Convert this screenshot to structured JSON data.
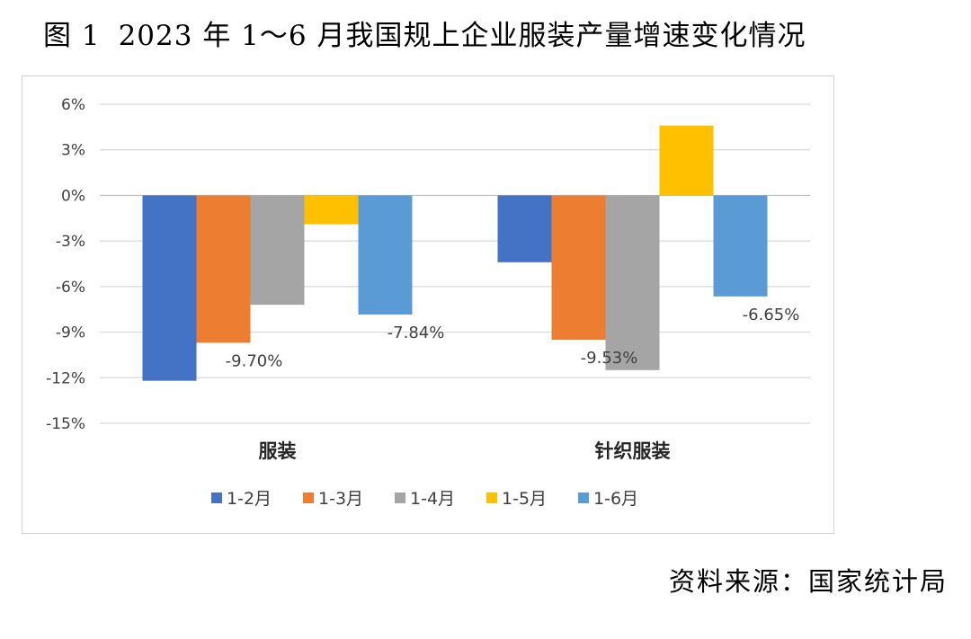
{
  "figure": {
    "number": "图 1",
    "title": "2023 年 1～6 月我国规上企业服装产量增速变化情况"
  },
  "source": "资料来源：国家统计局",
  "colors": {
    "s1": "#4472C4",
    "s2": "#ED7D31",
    "s3": "#A5A5A5",
    "s4": "#FFC000",
    "s5": "#5B9BD5",
    "grid": "#d9d9d9",
    "axis": "#bfbfbf",
    "text": "#404040"
  },
  "chart_data": {
    "type": "bar",
    "title": "2023 年 1～6 月我国规上企业服装产量增速变化情况",
    "categories": [
      "服装",
      "针织服装"
    ],
    "series": [
      {
        "name": "1-2月",
        "values": [
          -12.2,
          -4.4
        ]
      },
      {
        "name": "1-3月",
        "values": [
          -9.7,
          -9.5
        ]
      },
      {
        "name": "1-4月",
        "values": [
          -7.2,
          -11.5
        ]
      },
      {
        "name": "1-5月",
        "values": [
          -1.9,
          4.6
        ]
      },
      {
        "name": "1-6月",
        "values": [
          -7.84,
          -6.65
        ]
      }
    ],
    "data_labels": [
      {
        "text": "-9.70%",
        "category": 0,
        "series": 1
      },
      {
        "text": "-7.84%",
        "category": 0,
        "series": 4
      },
      {
        "text": "-9.53%",
        "category": 1,
        "series": 1
      },
      {
        "text": "-6.65%",
        "category": 1,
        "series": 4
      }
    ],
    "y_ticks": [
      6,
      3,
      0,
      -3,
      -6,
      -9,
      -12,
      -15
    ],
    "y_tick_labels": [
      "6%",
      "3%",
      "0%",
      "-3%",
      "-6%",
      "-9%",
      "-12%",
      "-15%"
    ],
    "ylim": [
      -15,
      6
    ],
    "xlabel": "",
    "ylabel": "",
    "grid": true,
    "legend_position": "bottom"
  }
}
